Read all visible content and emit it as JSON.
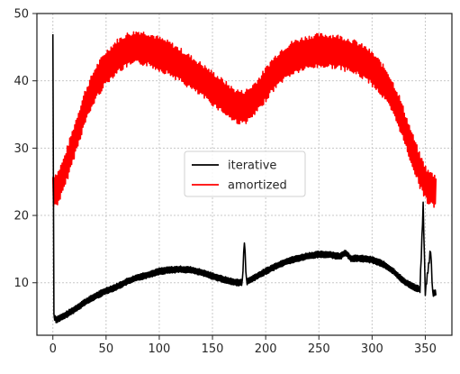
{
  "chart_data": {
    "type": "line",
    "title": "",
    "xlabel": "",
    "ylabel": "",
    "xlim": [
      -15,
      375
    ],
    "ylim": [
      2.2,
      50
    ],
    "xticks": [
      0,
      50,
      100,
      150,
      200,
      250,
      300,
      350
    ],
    "yticks": [
      10,
      20,
      30,
      40,
      50
    ],
    "grid": true,
    "legend_position": "center",
    "series": [
      {
        "name": "iterative",
        "color": "#000000",
        "band": 0.5,
        "points": [
          [
            0,
            46.5
          ],
          [
            1,
            5.0
          ],
          [
            3,
            4.5
          ],
          [
            10,
            5.0
          ],
          [
            20,
            6.0
          ],
          [
            30,
            7.1
          ],
          [
            40,
            8.0
          ],
          [
            50,
            8.8
          ],
          [
            60,
            9.4
          ],
          [
            70,
            10.2
          ],
          [
            80,
            10.8
          ],
          [
            90,
            11.2
          ],
          [
            100,
            11.7
          ],
          [
            110,
            11.9
          ],
          [
            120,
            12.0
          ],
          [
            130,
            11.9
          ],
          [
            140,
            11.5
          ],
          [
            150,
            11.0
          ],
          [
            160,
            10.5
          ],
          [
            170,
            10.1
          ],
          [
            178,
            10.0
          ],
          [
            180,
            16.3
          ],
          [
            182,
            10.1
          ],
          [
            190,
            10.8
          ],
          [
            200,
            11.7
          ],
          [
            210,
            12.5
          ],
          [
            220,
            13.2
          ],
          [
            230,
            13.6
          ],
          [
            240,
            14.0
          ],
          [
            250,
            14.2
          ],
          [
            260,
            14.2
          ],
          [
            270,
            13.9
          ],
          [
            275,
            14.5
          ],
          [
            280,
            13.6
          ],
          [
            290,
            13.6
          ],
          [
            300,
            13.4
          ],
          [
            310,
            12.8
          ],
          [
            320,
            11.7
          ],
          [
            330,
            10.2
          ],
          [
            340,
            9.3
          ],
          [
            345,
            9.0
          ],
          [
            348,
            21.5
          ],
          [
            350,
            8.6
          ],
          [
            355,
            15.0
          ],
          [
            357,
            8.3
          ],
          [
            360,
            8.6
          ]
        ]
      },
      {
        "name": "amortized",
        "color": "#ff0000",
        "band": 2.6,
        "points": [
          [
            0,
            23.5
          ],
          [
            5,
            24.2
          ],
          [
            10,
            26.0
          ],
          [
            20,
            31.0
          ],
          [
            30,
            36.0
          ],
          [
            40,
            39.6
          ],
          [
            50,
            42.0
          ],
          [
            60,
            43.6
          ],
          [
            70,
            44.6
          ],
          [
            80,
            45.0
          ],
          [
            90,
            44.7
          ],
          [
            100,
            44.0
          ],
          [
            110,
            43.3
          ],
          [
            120,
            42.3
          ],
          [
            130,
            41.2
          ],
          [
            140,
            40.1
          ],
          [
            150,
            38.9
          ],
          [
            160,
            37.7
          ],
          [
            170,
            36.4
          ],
          [
            178,
            36.0
          ],
          [
            185,
            36.5
          ],
          [
            195,
            38.3
          ],
          [
            205,
            40.6
          ],
          [
            215,
            42.3
          ],
          [
            225,
            43.4
          ],
          [
            235,
            44.0
          ],
          [
            245,
            44.4
          ],
          [
            255,
            44.5
          ],
          [
            265,
            44.4
          ],
          [
            275,
            44.0
          ],
          [
            285,
            43.4
          ],
          [
            295,
            42.5
          ],
          [
            305,
            41.0
          ],
          [
            315,
            38.9
          ],
          [
            325,
            35.6
          ],
          [
            335,
            31.0
          ],
          [
            345,
            26.6
          ],
          [
            352,
            24.3
          ],
          [
            360,
            23.5
          ]
        ]
      }
    ]
  }
}
